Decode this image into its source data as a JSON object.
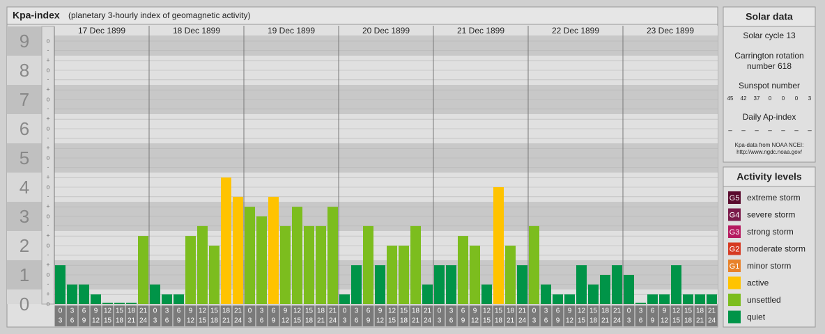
{
  "chart_data": {
    "type": "bar",
    "title": "Kpa-index",
    "subtitle": "(planetary 3-hourly index of geomagnetic activity)",
    "ylim": [
      0,
      9.5
    ],
    "yticks": [
      0,
      1,
      2,
      3,
      4,
      5,
      6,
      7,
      8,
      9
    ],
    "grid": true,
    "minor_ticks": [
      {
        "value": 0,
        "label": "o"
      },
      {
        "value": 0.33,
        "label": "+"
      },
      {
        "value": 0.67,
        "label": "-"
      },
      {
        "value": 1,
        "label": "o"
      },
      {
        "value": 1.33,
        "label": "+"
      },
      {
        "value": 1.67,
        "label": "-"
      },
      {
        "value": 2,
        "label": "o"
      },
      {
        "value": 2.33,
        "label": "+"
      },
      {
        "value": 2.67,
        "label": "-"
      },
      {
        "value": 3,
        "label": "o"
      },
      {
        "value": 3.33,
        "label": "+"
      },
      {
        "value": 3.67,
        "label": "-"
      },
      {
        "value": 4,
        "label": "o"
      },
      {
        "value": 4.33,
        "label": "+"
      },
      {
        "value": 4.67,
        "label": "-"
      },
      {
        "value": 5,
        "label": "o"
      },
      {
        "value": 5.33,
        "label": "+"
      },
      {
        "value": 5.67,
        "label": "-"
      },
      {
        "value": 6,
        "label": "o"
      },
      {
        "value": 6.33,
        "label": "+"
      },
      {
        "value": 6.67,
        "label": "-"
      },
      {
        "value": 7,
        "label": "o"
      },
      {
        "value": 7.33,
        "label": "+"
      },
      {
        "value": 7.67,
        "label": "-"
      },
      {
        "value": 8,
        "label": "o"
      },
      {
        "value": 8.33,
        "label": "+"
      },
      {
        "value": 8.67,
        "label": "-"
      },
      {
        "value": 9,
        "label": "o"
      }
    ],
    "hours": [
      [
        0,
        3
      ],
      [
        3,
        6
      ],
      [
        6,
        9
      ],
      [
        9,
        12
      ],
      [
        12,
        15
      ],
      [
        15,
        18
      ],
      [
        18,
        21
      ],
      [
        21,
        24
      ]
    ],
    "days": [
      {
        "label": "17 Dec 1899",
        "values": [
          1.33,
          0.67,
          0.67,
          0.33,
          0,
          0,
          0,
          2.33
        ],
        "colors": [
          "#009448",
          "#009448",
          "#009448",
          "#009448",
          "#009448",
          "#009448",
          "#009448",
          "#7cbd1e"
        ]
      },
      {
        "label": "18 Dec 1899",
        "values": [
          0.67,
          0.33,
          0.33,
          2.33,
          2.67,
          2,
          4.33,
          3.67
        ],
        "colors": [
          "#009448",
          "#009448",
          "#009448",
          "#7cbd1e",
          "#7cbd1e",
          "#7cbd1e",
          "#ffc300",
          "#ffc300"
        ]
      },
      {
        "label": "19 Dec 1899",
        "values": [
          3.33,
          3,
          3.67,
          2.67,
          3.33,
          2.67,
          2.67,
          3.33
        ],
        "colors": [
          "#7cbd1e",
          "#7cbd1e",
          "#ffc300",
          "#7cbd1e",
          "#7cbd1e",
          "#7cbd1e",
          "#7cbd1e",
          "#7cbd1e"
        ]
      },
      {
        "label": "20 Dec 1899",
        "values": [
          0.33,
          1.33,
          2.67,
          1.33,
          2,
          2,
          2.67,
          0.67
        ],
        "colors": [
          "#009448",
          "#009448",
          "#7cbd1e",
          "#009448",
          "#7cbd1e",
          "#7cbd1e",
          "#7cbd1e",
          "#009448"
        ]
      },
      {
        "label": "21 Dec 1899",
        "values": [
          1.33,
          1.33,
          2.33,
          2,
          0.67,
          4,
          2,
          1.33
        ],
        "colors": [
          "#009448",
          "#009448",
          "#7cbd1e",
          "#7cbd1e",
          "#009448",
          "#ffc300",
          "#7cbd1e",
          "#009448"
        ]
      },
      {
        "label": "22 Dec 1899",
        "values": [
          2.67,
          0.67,
          0.33,
          0.33,
          1.33,
          0.67,
          1,
          1.33
        ],
        "colors": [
          "#7cbd1e",
          "#009448",
          "#009448",
          "#009448",
          "#009448",
          "#009448",
          "#009448",
          "#009448"
        ]
      },
      {
        "label": "23 Dec 1899",
        "values": [
          1,
          0,
          0.33,
          0.33,
          1.33,
          0.33,
          0.33,
          0.33
        ],
        "colors": [
          "#009448",
          "#009448",
          "#009448",
          "#009448",
          "#009448",
          "#009448",
          "#009448",
          "#009448"
        ]
      }
    ]
  },
  "solar_data": {
    "title": "Solar data",
    "cycle": "Solar cycle 13",
    "carrington": [
      "Carrington rotation",
      "number 618"
    ],
    "sunspot_label": "Sunspot number",
    "sunspots": [
      45,
      42,
      37,
      0,
      0,
      0,
      3
    ],
    "ap_label": "Daily Ap-index",
    "ap": [
      "–",
      "–",
      "–",
      "–",
      "–",
      "–",
      "–"
    ],
    "source": [
      "Kpa-data from NOAA NCEI:",
      "http://www.ngdc.noaa.gov/"
    ]
  },
  "activity_levels": {
    "title": "Activity levels",
    "items": [
      {
        "code": "G5",
        "name": "extreme storm",
        "color": "#5a0a2d"
      },
      {
        "code": "G4",
        "name": "severe storm",
        "color": "#7a1a4a"
      },
      {
        "code": "G3",
        "name": "strong storm",
        "color": "#b5195f"
      },
      {
        "code": "G2",
        "name": "moderate storm",
        "color": "#d63a22"
      },
      {
        "code": "G1",
        "name": "minor storm",
        "color": "#e8822a"
      },
      {
        "name": "active",
        "color": "#ffc300"
      },
      {
        "name": "unsettled",
        "color": "#7cbd1e"
      },
      {
        "name": "quiet",
        "color": "#009448"
      }
    ]
  }
}
